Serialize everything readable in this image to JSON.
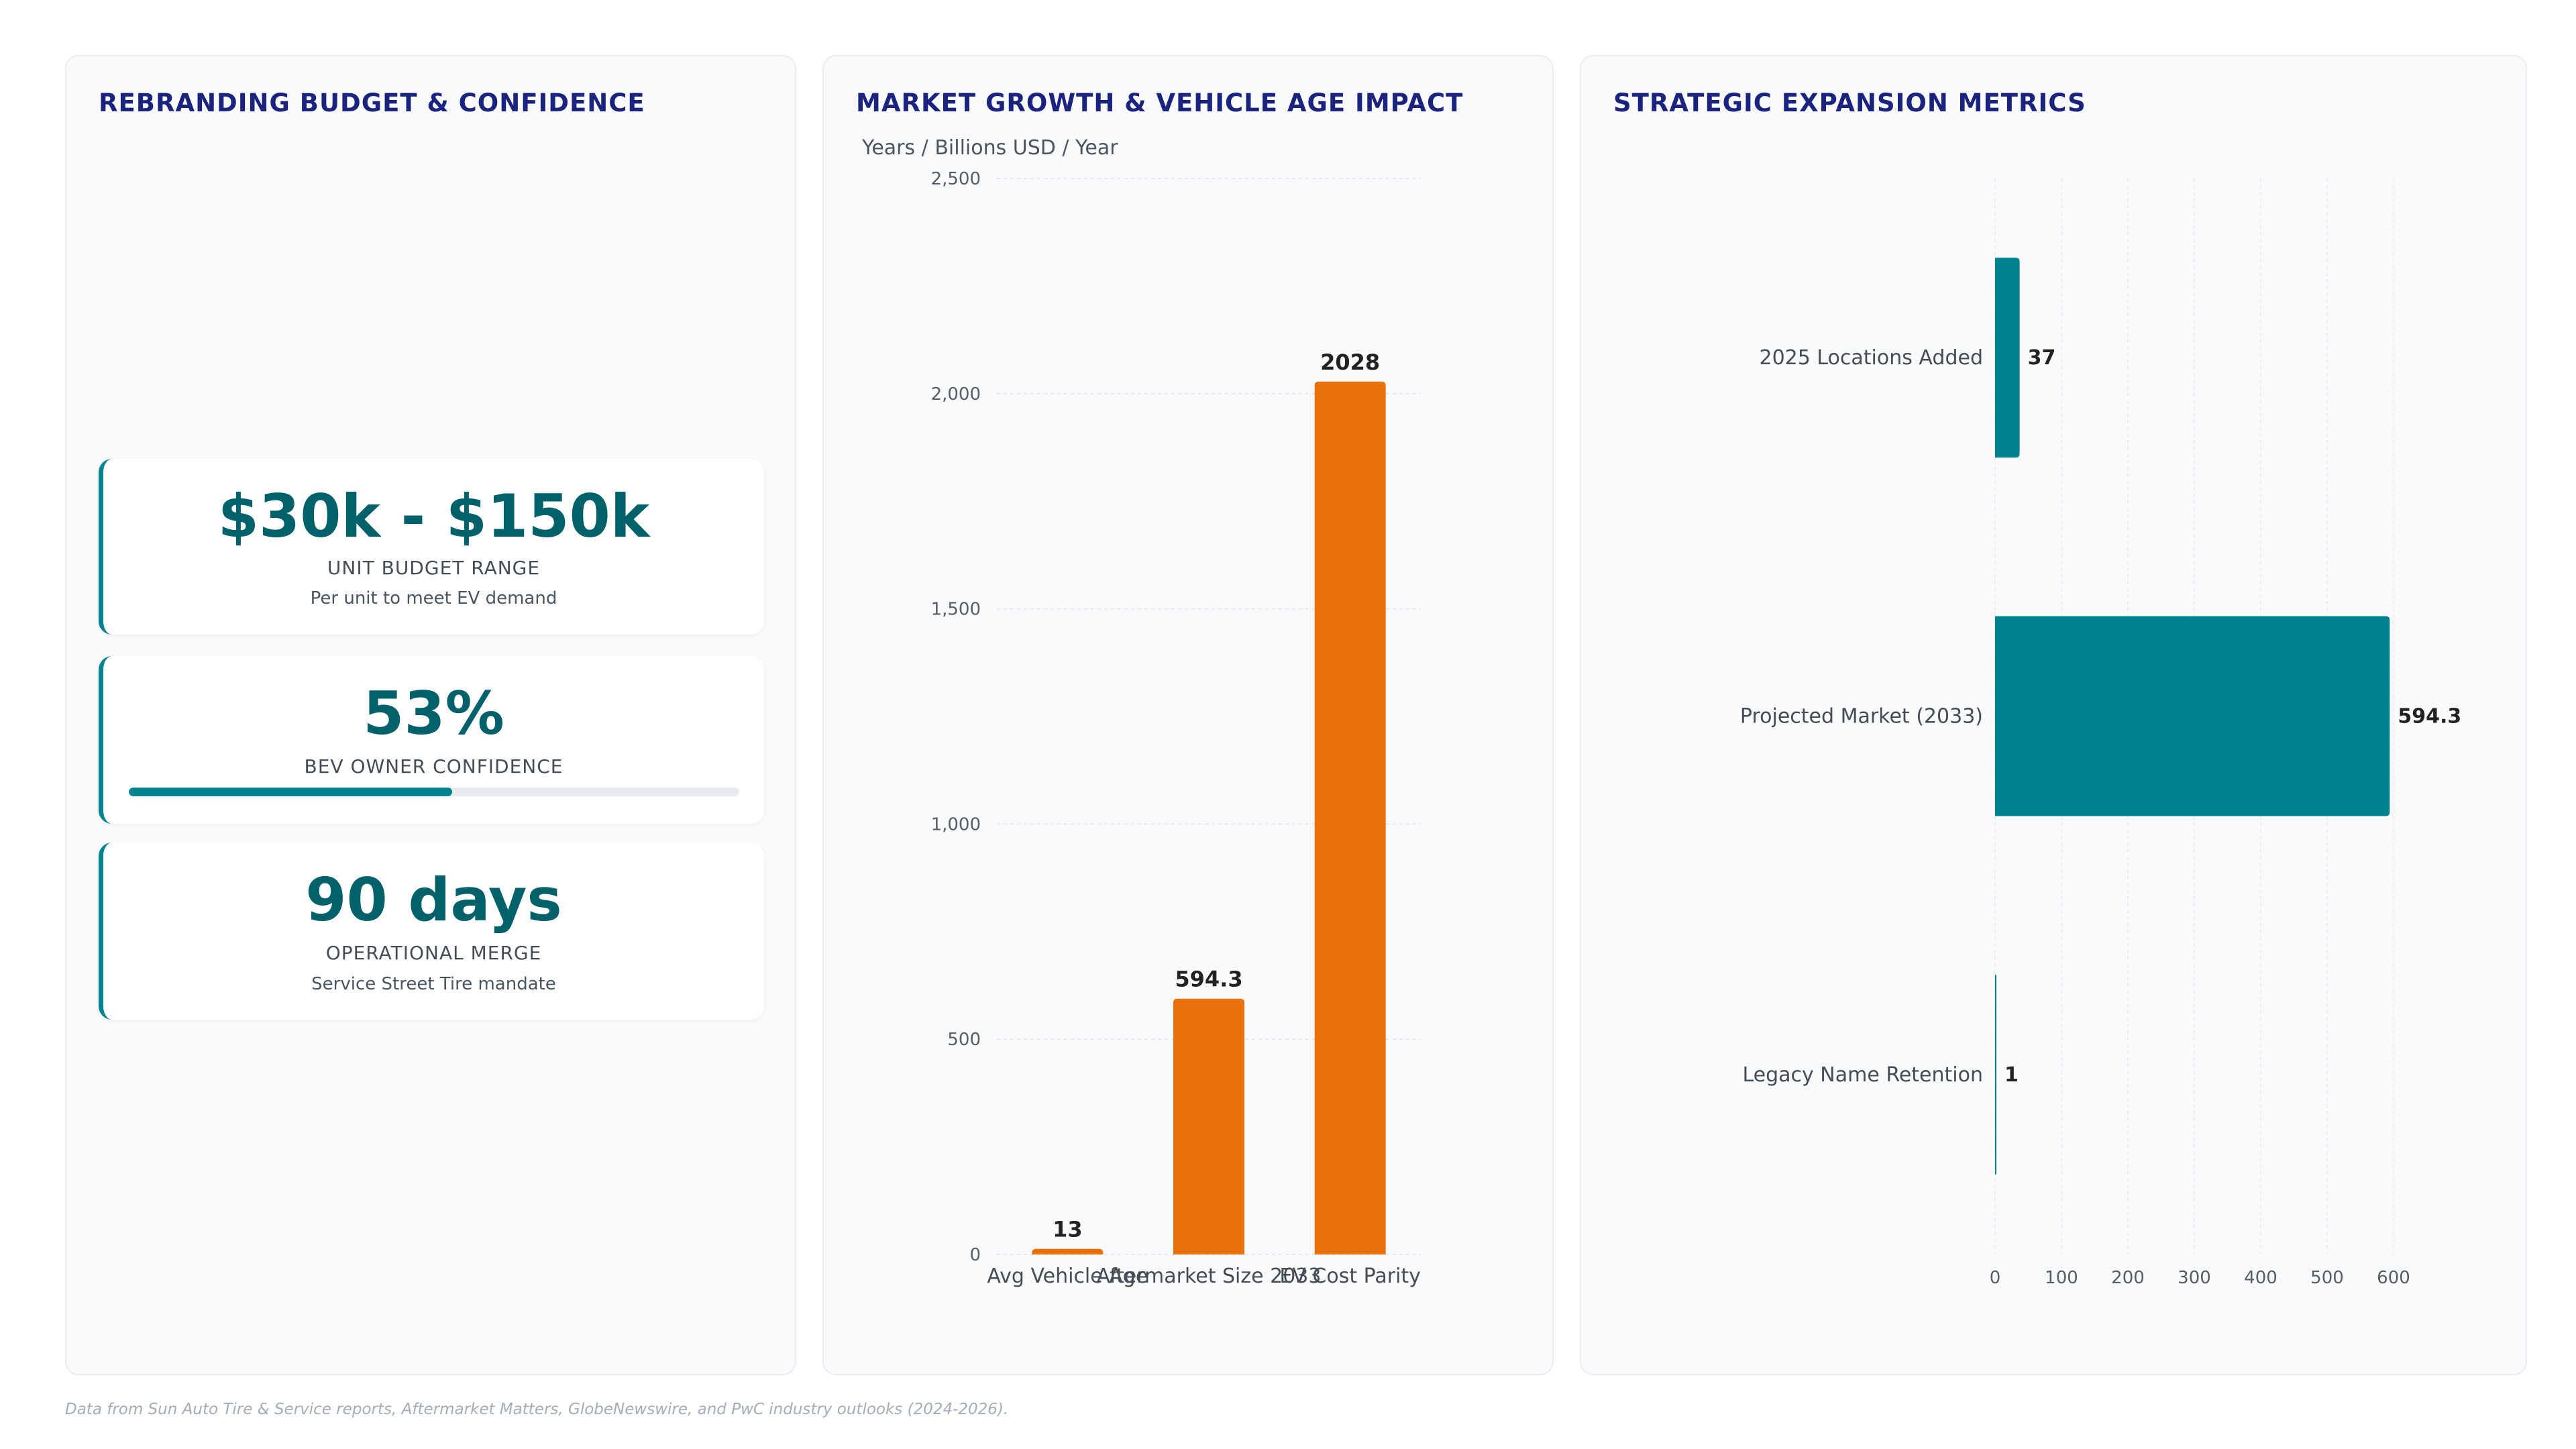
{
  "left_panel": {
    "title": "REBRANDING BUDGET & CONFIDENCE",
    "kpis": [
      {
        "value": "$30k - $150k",
        "label": "UNIT BUDGET RANGE",
        "sub": "Per unit to meet EV demand"
      },
      {
        "value": "53%",
        "label": "BEV OWNER CONFIDENCE",
        "progress": 0.53
      },
      {
        "value": "90 days",
        "label": "OPERATIONAL MERGE",
        "sub": "Service Street Tire mandate"
      }
    ]
  },
  "middle_panel": {
    "title": "MARKET GROWTH & VEHICLE AGE IMPACT"
  },
  "right_panel": {
    "title": "STRATEGIC EXPANSION METRICS"
  },
  "footnote": "Data from Sun Auto Tire & Service reports, Aftermarket Matters, GlobeNewswire, and PwC industry outlooks (2024-2026).",
  "colors": {
    "accent_teal": "#00838f",
    "accent_orange": "#e8710a",
    "title_navy": "#1a237e"
  },
  "chart_data": [
    {
      "type": "bar",
      "orientation": "vertical",
      "ylabel": "Years / Billions USD / Year",
      "categories": [
        "Avg Vehicle Age",
        "Aftermarket Size 2033",
        "EV Cost Parity"
      ],
      "values": [
        13,
        594.3,
        2028
      ],
      "data_labels": [
        "13",
        "594.3",
        "2028"
      ],
      "ylim": [
        0,
        2500
      ],
      "yticks": [
        0,
        500,
        1000,
        1500,
        2000,
        2500
      ],
      "ytick_labels": [
        "0",
        "500",
        "1,000",
        "1,500",
        "2,000",
        "2,500"
      ],
      "grid": true,
      "color": "#e8710a"
    },
    {
      "type": "bar",
      "orientation": "horizontal",
      "categories": [
        "2025 Locations Added",
        "Projected Market (2033)",
        "Legacy Name Retention"
      ],
      "values": [
        37,
        594.3,
        1
      ],
      "data_labels": [
        "37",
        "594.3",
        "1"
      ],
      "xlim": [
        0,
        600
      ],
      "xticks": [
        0,
        100,
        200,
        300,
        400,
        500,
        600
      ],
      "xtick_labels": [
        "0",
        "100",
        "200",
        "300",
        "400",
        "500",
        "600"
      ],
      "grid": true,
      "color": "#00838f"
    }
  ]
}
